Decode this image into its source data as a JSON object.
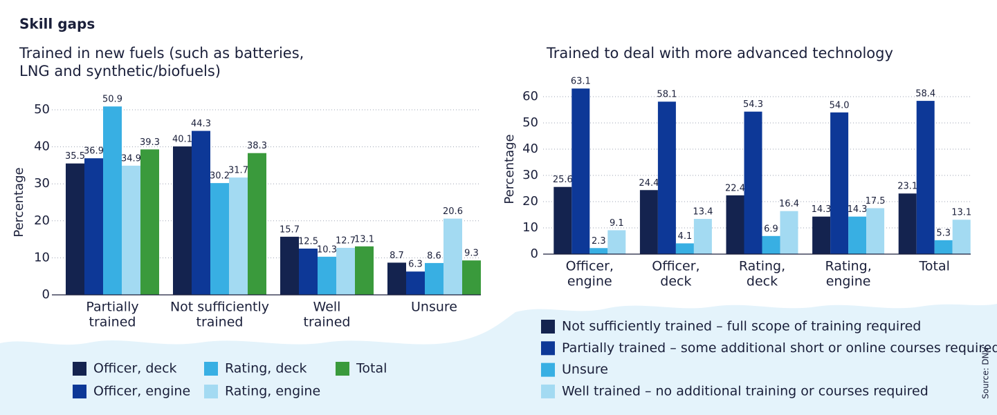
{
  "title": "Skill gaps",
  "source": "Source: DNV",
  "chart_data": [
    {
      "type": "bar",
      "title": [
        "Trained in new fuels (such as batteries,",
        "LNG and synthetic/biofuels)"
      ],
      "y_label": "Percentage",
      "categories": [
        [
          "Partially",
          "trained"
        ],
        [
          "Not sufficiently",
          "trained"
        ],
        [
          "Well",
          "trained"
        ],
        [
          "Unsure"
        ]
      ],
      "series": [
        {
          "name": "Officer, deck",
          "color": "#14234f",
          "values": [
            35.5,
            40.1,
            15.7,
            8.7
          ]
        },
        {
          "name": "Officer, engine",
          "color": "#0d3897",
          "values": [
            36.9,
            44.3,
            12.5,
            6.3
          ]
        },
        {
          "name": "Rating, deck",
          "color": "#38afe3",
          "values": [
            50.9,
            30.2,
            10.3,
            8.6
          ]
        },
        {
          "name": "Rating, engine",
          "color": "#a3daf2",
          "values": [
            34.9,
            31.7,
            12.7,
            20.6
          ]
        },
        {
          "name": "Total",
          "color": "#3a9a3c",
          "values": [
            39.3,
            38.3,
            13.1,
            9.3
          ]
        }
      ],
      "ylim": [
        0,
        50
      ],
      "yticks": [
        0,
        10,
        20,
        30,
        40,
        50
      ],
      "grid": true
    },
    {
      "type": "bar",
      "title": [
        "Trained to deal with more advanced technology"
      ],
      "y_label": "Percentage",
      "categories": [
        [
          "Officer,",
          "engine"
        ],
        [
          "Officer,",
          "deck"
        ],
        [
          "Rating,",
          "deck"
        ],
        [
          "Rating,",
          "engine"
        ],
        [
          "Total"
        ]
      ],
      "series": [
        {
          "name": "Not sufficiently trained – full scope of training required",
          "color": "#14234f",
          "values": [
            25.6,
            24.4,
            22.4,
            14.3,
            23.1
          ]
        },
        {
          "name": "Partially trained – some additional short or online courses required",
          "color": "#0d3897",
          "values": [
            63.1,
            58.1,
            54.3,
            54,
            58.4
          ],
          "value_labels": [
            "63.1",
            "58.1",
            "54.3",
            "54.0",
            "58.4"
          ]
        },
        {
          "name": "Unsure",
          "color": "#38afe3",
          "values": [
            2.3,
            4.1,
            6.9,
            14.3,
            5.3
          ]
        },
        {
          "name": "Well trained – no additional training or courses required",
          "color": "#a3daf2",
          "values": [
            9.1,
            13.4,
            16.4,
            17.5,
            13.1
          ]
        }
      ],
      "ylim": [
        0,
        60
      ],
      "yticks": [
        0,
        10,
        20,
        30,
        40,
        50,
        60
      ],
      "grid": true
    }
  ]
}
